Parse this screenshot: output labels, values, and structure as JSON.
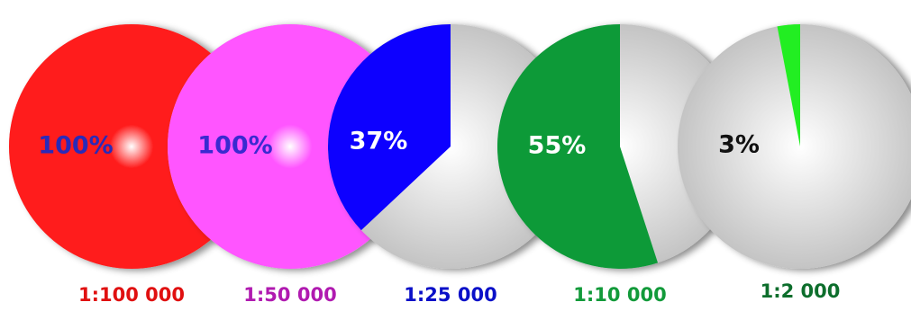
{
  "chart_data": {
    "type": "pie",
    "pies": [
      {
        "percent_label": "100%",
        "value": 100,
        "fill": "#ff1a1a",
        "label_color": "#2a2ab8",
        "scale_label": "1:100 000",
        "scale_color": "#e01010"
      },
      {
        "percent_label": "100%",
        "value": 100,
        "fill": "#ff55ff",
        "label_color": "#3a2ad0",
        "scale_label": "1:50 000",
        "scale_color": "#b01ab0"
      },
      {
        "percent_label": "37%",
        "value": 37,
        "fill": "#0a00ff",
        "label_color": "#ffffff",
        "scale_label": "1:25 000",
        "scale_color": "#0a10c8"
      },
      {
        "percent_label": "55%",
        "value": 55,
        "fill": "#079a38",
        "label_color": "#ffffff",
        "scale_label": "1:10 000",
        "scale_color": "#129a3a"
      },
      {
        "percent_label": "3%",
        "value": 3,
        "fill": "#22ee22",
        "label_color": "#111111",
        "scale_label": "1:2 000",
        "scale_color": "#0d6e2c"
      }
    ]
  }
}
